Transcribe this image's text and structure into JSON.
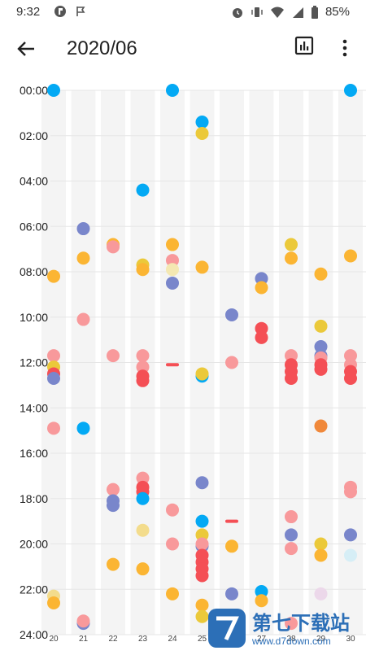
{
  "status_bar": {
    "time": "9:32",
    "battery": "85%",
    "icons": [
      "app-notification-icon",
      "flag-icon",
      "alarm-icon",
      "vibrate-icon",
      "wifi-icon",
      "signal-icon",
      "battery-icon"
    ]
  },
  "app_bar": {
    "title": "2020/06",
    "back_icon": "arrow-back-icon",
    "chart_icon": "bar-chart-icon",
    "more_icon": "more-vert-icon"
  },
  "colors": {
    "blue": "#03a9f4",
    "indigo": "#7986cb",
    "orange": "#fbb533",
    "yellow": "#ebc93a",
    "pale_yellow": "#f3dc8c",
    "pink": "#f8999b",
    "red": "#f44f55",
    "dark_orange": "#f0883a",
    "light_cyan": "#d6eef6",
    "lavender": "#ecd8ea",
    "cream": "#f4e8b2",
    "column_stripe": "#f4f4f4"
  },
  "chart_data": {
    "type": "scatter",
    "x_axis": "day",
    "y_axis": "time",
    "time_labels": [
      "00:00",
      "02:00",
      "04:00",
      "06:00",
      "08:00",
      "10:00",
      "12:00",
      "14:00",
      "16:00",
      "18:00",
      "20:00",
      "22:00",
      "24:00"
    ],
    "ylim": [
      0,
      24
    ],
    "days": [
      {
        "label": "20",
        "day": 20
      },
      {
        "label": "21",
        "day": 21
      },
      {
        "label": "22",
        "day": 22
      },
      {
        "label": "23",
        "day": 23
      },
      {
        "label": "24",
        "day": 24
      },
      {
        "label": "25",
        "day": 25
      },
      {
        "label": "26",
        "day": 26
      },
      {
        "label": "27",
        "day": 27
      },
      {
        "label": "28",
        "day": 28
      },
      {
        "label": "29",
        "day": 29
      },
      {
        "label": "30",
        "day": 30
      }
    ],
    "xlim": [
      20,
      30
    ],
    "dots": [
      {
        "day": 20,
        "t": 0.0,
        "c": "blue"
      },
      {
        "day": 20,
        "t": 8.2,
        "c": "orange"
      },
      {
        "day": 20,
        "t": 11.7,
        "c": "pink"
      },
      {
        "day": 20,
        "t": 12.2,
        "c": "yellow"
      },
      {
        "day": 20,
        "t": 12.5,
        "c": "red"
      },
      {
        "day": 20,
        "t": 12.7,
        "c": "indigo"
      },
      {
        "day": 20,
        "t": 14.9,
        "c": "pink"
      },
      {
        "day": 20,
        "t": 22.3,
        "c": "pale_yellow"
      },
      {
        "day": 20,
        "t": 22.6,
        "c": "orange"
      },
      {
        "day": 21,
        "t": 6.1,
        "c": "indigo"
      },
      {
        "day": 21,
        "t": 7.4,
        "c": "orange"
      },
      {
        "day": 21,
        "t": 10.1,
        "c": "pink"
      },
      {
        "day": 21,
        "t": 14.9,
        "c": "blue"
      },
      {
        "day": 21,
        "t": 23.5,
        "c": "indigo"
      },
      {
        "day": 21,
        "t": 23.4,
        "c": "pink"
      },
      {
        "day": 22,
        "t": 6.8,
        "c": "orange"
      },
      {
        "day": 22,
        "t": 6.9,
        "c": "pink"
      },
      {
        "day": 22,
        "t": 11.7,
        "c": "pink"
      },
      {
        "day": 22,
        "t": 17.6,
        "c": "pink"
      },
      {
        "day": 22,
        "t": 18.1,
        "c": "indigo"
      },
      {
        "day": 22,
        "t": 18.3,
        "c": "indigo"
      },
      {
        "day": 22,
        "t": 20.9,
        "c": "orange"
      },
      {
        "day": 23,
        "t": 4.4,
        "c": "blue"
      },
      {
        "day": 23,
        "t": 7.7,
        "c": "yellow"
      },
      {
        "day": 23,
        "t": 7.9,
        "c": "orange"
      },
      {
        "day": 23,
        "t": 11.7,
        "c": "pink"
      },
      {
        "day": 23,
        "t": 12.2,
        "c": "pink"
      },
      {
        "day": 23,
        "t": 12.6,
        "c": "red"
      },
      {
        "day": 23,
        "t": 12.8,
        "c": "red"
      },
      {
        "day": 23,
        "t": 17.1,
        "c": "pink"
      },
      {
        "day": 23,
        "t": 17.5,
        "c": "red"
      },
      {
        "day": 23,
        "t": 17.7,
        "c": "red"
      },
      {
        "day": 23,
        "t": 18.0,
        "c": "blue"
      },
      {
        "day": 23,
        "t": 19.4,
        "c": "pale_yellow"
      },
      {
        "day": 23,
        "t": 21.1,
        "c": "orange"
      },
      {
        "day": 24,
        "t": 0.0,
        "c": "blue"
      },
      {
        "day": 24,
        "t": 6.8,
        "c": "orange"
      },
      {
        "day": 24,
        "t": 7.5,
        "c": "pink"
      },
      {
        "day": 24,
        "t": 7.9,
        "c": "cream"
      },
      {
        "day": 24,
        "t": 8.5,
        "c": "indigo"
      },
      {
        "day": 24,
        "t": 18.5,
        "c": "pink"
      },
      {
        "day": 24,
        "t": 20.0,
        "c": "pink"
      },
      {
        "day": 24,
        "t": 22.2,
        "c": "orange"
      },
      {
        "day": 25,
        "t": 1.4,
        "c": "blue"
      },
      {
        "day": 25,
        "t": 1.9,
        "c": "yellow"
      },
      {
        "day": 25,
        "t": 7.8,
        "c": "orange"
      },
      {
        "day": 25,
        "t": 12.6,
        "c": "blue"
      },
      {
        "day": 25,
        "t": 12.5,
        "c": "yellow"
      },
      {
        "day": 25,
        "t": 17.3,
        "c": "indigo"
      },
      {
        "day": 25,
        "t": 19.0,
        "c": "blue"
      },
      {
        "day": 25,
        "t": 19.6,
        "c": "yellow"
      },
      {
        "day": 25,
        "t": 20.1,
        "c": "indigo"
      },
      {
        "day": 25,
        "t": 20.0,
        "c": "pink"
      },
      {
        "day": 25,
        "t": 20.5,
        "c": "red"
      },
      {
        "day": 25,
        "t": 20.8,
        "c": "red"
      },
      {
        "day": 25,
        "t": 21.1,
        "c": "red"
      },
      {
        "day": 25,
        "t": 21.4,
        "c": "red"
      },
      {
        "day": 25,
        "t": 22.7,
        "c": "orange"
      },
      {
        "day": 25,
        "t": 23.2,
        "c": "yellow"
      },
      {
        "day": 26,
        "t": 9.9,
        "c": "indigo"
      },
      {
        "day": 26,
        "t": 12.0,
        "c": "pink"
      },
      {
        "day": 26,
        "t": 20.1,
        "c": "orange"
      },
      {
        "day": 26,
        "t": 22.2,
        "c": "indigo"
      },
      {
        "day": 27,
        "t": 8.3,
        "c": "indigo"
      },
      {
        "day": 27,
        "t": 8.7,
        "c": "orange"
      },
      {
        "day": 27,
        "t": 10.5,
        "c": "red"
      },
      {
        "day": 27,
        "t": 10.9,
        "c": "red"
      },
      {
        "day": 27,
        "t": 22.1,
        "c": "blue"
      },
      {
        "day": 27,
        "t": 22.5,
        "c": "orange"
      },
      {
        "day": 28,
        "t": 6.8,
        "c": "yellow"
      },
      {
        "day": 28,
        "t": 7.4,
        "c": "orange"
      },
      {
        "day": 28,
        "t": 11.7,
        "c": "pink"
      },
      {
        "day": 28,
        "t": 12.1,
        "c": "red"
      },
      {
        "day": 28,
        "t": 12.4,
        "c": "red"
      },
      {
        "day": 28,
        "t": 12.7,
        "c": "red"
      },
      {
        "day": 28,
        "t": 18.8,
        "c": "pink"
      },
      {
        "day": 28,
        "t": 19.6,
        "c": "indigo"
      },
      {
        "day": 28,
        "t": 20.2,
        "c": "pink"
      },
      {
        "day": 28,
        "t": 23.5,
        "c": "pink"
      },
      {
        "day": 29,
        "t": 8.1,
        "c": "orange"
      },
      {
        "day": 29,
        "t": 10.4,
        "c": "yellow"
      },
      {
        "day": 29,
        "t": 11.3,
        "c": "indigo"
      },
      {
        "day": 29,
        "t": 11.7,
        "c": "indigo"
      },
      {
        "day": 29,
        "t": 11.8,
        "c": "pink"
      },
      {
        "day": 29,
        "t": 12.1,
        "c": "red"
      },
      {
        "day": 29,
        "t": 12.3,
        "c": "red"
      },
      {
        "day": 29,
        "t": 14.8,
        "c": "dark_orange"
      },
      {
        "day": 29,
        "t": 20.0,
        "c": "yellow"
      },
      {
        "day": 29,
        "t": 20.5,
        "c": "orange"
      },
      {
        "day": 29,
        "t": 22.2,
        "c": "lavender"
      },
      {
        "day": 30,
        "t": 0.0,
        "c": "blue"
      },
      {
        "day": 30,
        "t": 7.3,
        "c": "orange"
      },
      {
        "day": 30,
        "t": 11.7,
        "c": "pink"
      },
      {
        "day": 30,
        "t": 12.1,
        "c": "pink"
      },
      {
        "day": 30,
        "t": 12.4,
        "c": "red"
      },
      {
        "day": 30,
        "t": 12.7,
        "c": "red"
      },
      {
        "day": 30,
        "t": 17.5,
        "c": "pink"
      },
      {
        "day": 30,
        "t": 17.7,
        "c": "pink"
      },
      {
        "day": 30,
        "t": 19.6,
        "c": "indigo"
      },
      {
        "day": 30,
        "t": 20.5,
        "c": "light_cyan"
      }
    ],
    "dashes": [
      {
        "day": 24,
        "t": 12.1,
        "c": "red"
      },
      {
        "day": 26,
        "t": 19.0,
        "c": "red"
      }
    ]
  },
  "watermark": {
    "title": "第七下载站",
    "url": "www.d7down.com"
  }
}
